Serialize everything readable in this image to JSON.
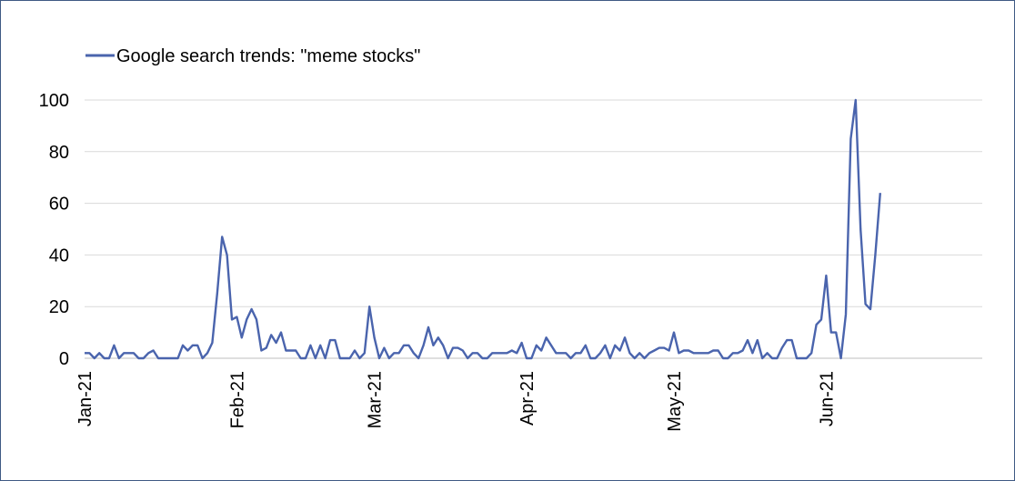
{
  "chart_data": {
    "type": "line",
    "title": "",
    "xlabel": "",
    "ylabel": "",
    "ylim": [
      0,
      100
    ],
    "yticks": [
      "0",
      "20",
      "40",
      "60",
      "80",
      "100"
    ],
    "x_tick_labels": [
      "Jan-21",
      "Feb-21",
      "Mar-21",
      "Apr-21",
      "May-21",
      "Jun-21"
    ],
    "legend_position": "top-left",
    "grid": "horizontal",
    "series": [
      {
        "name": "Google search trends: \"meme stocks\"",
        "color": "#4a64ad",
        "x_start": "2021-01-01",
        "x_step_days": 1,
        "values": [
          2,
          2,
          0,
          2,
          0,
          0,
          5,
          0,
          2,
          2,
          2,
          0,
          0,
          2,
          3,
          0,
          0,
          0,
          0,
          0,
          5,
          3,
          5,
          5,
          0,
          2,
          6,
          25,
          47,
          40,
          15,
          16,
          8,
          15,
          19,
          15,
          3,
          4,
          9,
          6,
          10,
          3,
          3,
          3,
          0,
          0,
          5,
          0,
          5,
          0,
          7,
          7,
          0,
          0,
          0,
          3,
          0,
          2,
          20,
          8,
          0,
          4,
          0,
          2,
          2,
          5,
          5,
          2,
          0,
          5,
          12,
          5,
          8,
          5,
          0,
          4,
          4,
          3,
          0,
          2,
          2,
          0,
          0,
          2,
          2,
          2,
          2,
          3,
          2,
          6,
          0,
          0,
          5,
          3,
          8,
          5,
          2,
          2,
          2,
          0,
          2,
          2,
          5,
          0,
          0,
          2,
          5,
          0,
          5,
          3,
          8,
          2,
          0,
          2,
          0,
          2,
          3,
          4,
          4,
          3,
          10,
          2,
          3,
          3,
          2,
          2,
          2,
          2,
          3,
          3,
          0,
          0,
          2,
          2,
          3,
          7,
          2,
          7,
          0,
          2,
          0,
          0,
          4,
          7,
          7,
          0,
          0,
          0,
          2,
          13,
          15,
          32,
          10,
          10,
          0,
          17,
          85,
          100,
          50,
          21,
          19,
          40,
          64
        ]
      }
    ]
  }
}
